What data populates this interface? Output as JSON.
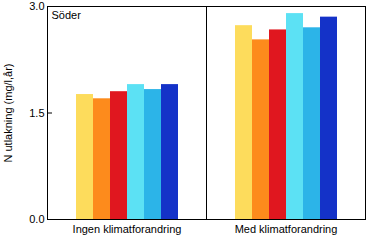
{
  "chart_data": {
    "type": "bar",
    "y_label": "N utlakning (mg/l,år)",
    "annotations": [
      "Söder"
    ],
    "categories": [
      "Ingen klimatforandring",
      "Med klimatforandring"
    ],
    "series": [
      {
        "color": "#fddc5c",
        "values": [
          1.76,
          2.73
        ]
      },
      {
        "color": "#fd8b1c",
        "values": [
          1.7,
          2.53
        ]
      },
      {
        "color": "#e0171f",
        "values": [
          1.8,
          2.67
        ]
      },
      {
        "color": "#5ce1f4",
        "values": [
          1.9,
          2.9
        ]
      },
      {
        "color": "#2cb4e8",
        "values": [
          1.83,
          2.7
        ]
      },
      {
        "color": "#1432c8",
        "values": [
          1.9,
          2.85
        ]
      }
    ],
    "ylim": [
      0,
      3
    ],
    "yticks": [
      0,
      1.5,
      3
    ],
    "grid": false
  }
}
